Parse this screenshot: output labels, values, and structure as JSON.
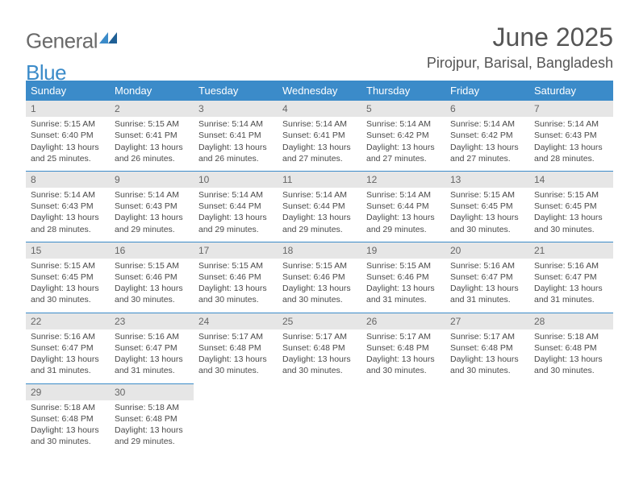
{
  "brand": {
    "text1": "General",
    "text2": "Blue"
  },
  "title": "June 2025",
  "location": "Pirojpur, Barisal, Bangladesh",
  "colors": {
    "accent": "#3b8bc9",
    "header_text": "#ffffff",
    "daynum_bg": "#e6e6e6",
    "text": "#4a4a4a",
    "title_text": "#555555"
  },
  "daysOfWeek": [
    "Sunday",
    "Monday",
    "Tuesday",
    "Wednesday",
    "Thursday",
    "Friday",
    "Saturday"
  ],
  "weeks": [
    [
      {
        "n": "1",
        "sr": "5:15 AM",
        "ss": "6:40 PM",
        "dl": "13 hours and 25 minutes."
      },
      {
        "n": "2",
        "sr": "5:15 AM",
        "ss": "6:41 PM",
        "dl": "13 hours and 26 minutes."
      },
      {
        "n": "3",
        "sr": "5:14 AM",
        "ss": "6:41 PM",
        "dl": "13 hours and 26 minutes."
      },
      {
        "n": "4",
        "sr": "5:14 AM",
        "ss": "6:41 PM",
        "dl": "13 hours and 27 minutes."
      },
      {
        "n": "5",
        "sr": "5:14 AM",
        "ss": "6:42 PM",
        "dl": "13 hours and 27 minutes."
      },
      {
        "n": "6",
        "sr": "5:14 AM",
        "ss": "6:42 PM",
        "dl": "13 hours and 27 minutes."
      },
      {
        "n": "7",
        "sr": "5:14 AM",
        "ss": "6:43 PM",
        "dl": "13 hours and 28 minutes."
      }
    ],
    [
      {
        "n": "8",
        "sr": "5:14 AM",
        "ss": "6:43 PM",
        "dl": "13 hours and 28 minutes."
      },
      {
        "n": "9",
        "sr": "5:14 AM",
        "ss": "6:43 PM",
        "dl": "13 hours and 29 minutes."
      },
      {
        "n": "10",
        "sr": "5:14 AM",
        "ss": "6:44 PM",
        "dl": "13 hours and 29 minutes."
      },
      {
        "n": "11",
        "sr": "5:14 AM",
        "ss": "6:44 PM",
        "dl": "13 hours and 29 minutes."
      },
      {
        "n": "12",
        "sr": "5:14 AM",
        "ss": "6:44 PM",
        "dl": "13 hours and 29 minutes."
      },
      {
        "n": "13",
        "sr": "5:15 AM",
        "ss": "6:45 PM",
        "dl": "13 hours and 30 minutes."
      },
      {
        "n": "14",
        "sr": "5:15 AM",
        "ss": "6:45 PM",
        "dl": "13 hours and 30 minutes."
      }
    ],
    [
      {
        "n": "15",
        "sr": "5:15 AM",
        "ss": "6:45 PM",
        "dl": "13 hours and 30 minutes."
      },
      {
        "n": "16",
        "sr": "5:15 AM",
        "ss": "6:46 PM",
        "dl": "13 hours and 30 minutes."
      },
      {
        "n": "17",
        "sr": "5:15 AM",
        "ss": "6:46 PM",
        "dl": "13 hours and 30 minutes."
      },
      {
        "n": "18",
        "sr": "5:15 AM",
        "ss": "6:46 PM",
        "dl": "13 hours and 30 minutes."
      },
      {
        "n": "19",
        "sr": "5:15 AM",
        "ss": "6:46 PM",
        "dl": "13 hours and 31 minutes."
      },
      {
        "n": "20",
        "sr": "5:16 AM",
        "ss": "6:47 PM",
        "dl": "13 hours and 31 minutes."
      },
      {
        "n": "21",
        "sr": "5:16 AM",
        "ss": "6:47 PM",
        "dl": "13 hours and 31 minutes."
      }
    ],
    [
      {
        "n": "22",
        "sr": "5:16 AM",
        "ss": "6:47 PM",
        "dl": "13 hours and 31 minutes."
      },
      {
        "n": "23",
        "sr": "5:16 AM",
        "ss": "6:47 PM",
        "dl": "13 hours and 31 minutes."
      },
      {
        "n": "24",
        "sr": "5:17 AM",
        "ss": "6:48 PM",
        "dl": "13 hours and 30 minutes."
      },
      {
        "n": "25",
        "sr": "5:17 AM",
        "ss": "6:48 PM",
        "dl": "13 hours and 30 minutes."
      },
      {
        "n": "26",
        "sr": "5:17 AM",
        "ss": "6:48 PM",
        "dl": "13 hours and 30 minutes."
      },
      {
        "n": "27",
        "sr": "5:17 AM",
        "ss": "6:48 PM",
        "dl": "13 hours and 30 minutes."
      },
      {
        "n": "28",
        "sr": "5:18 AM",
        "ss": "6:48 PM",
        "dl": "13 hours and 30 minutes."
      }
    ],
    [
      {
        "n": "29",
        "sr": "5:18 AM",
        "ss": "6:48 PM",
        "dl": "13 hours and 30 minutes."
      },
      {
        "n": "30",
        "sr": "5:18 AM",
        "ss": "6:48 PM",
        "dl": "13 hours and 29 minutes."
      },
      null,
      null,
      null,
      null,
      null
    ]
  ],
  "labels": {
    "sunrise": "Sunrise:",
    "sunset": "Sunset:",
    "daylight": "Daylight:"
  }
}
